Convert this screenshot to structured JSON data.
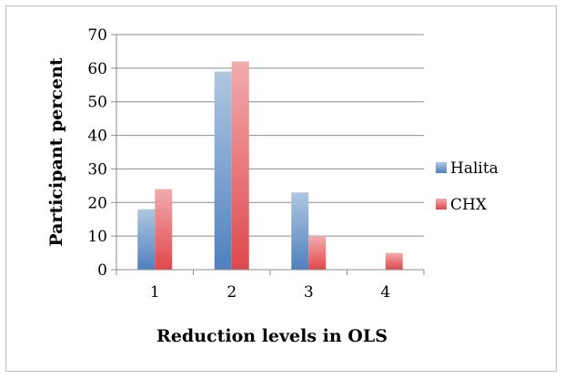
{
  "chart_data": {
    "type": "bar",
    "categories": [
      "1",
      "2",
      "3",
      "4"
    ],
    "series": [
      {
        "name": "Halita",
        "values": [
          18,
          59,
          23,
          0
        ],
        "color": "#4f81bd"
      },
      {
        "name": "CHX",
        "values": [
          24,
          62,
          10,
          5
        ],
        "color": "#e0474c"
      }
    ],
    "xlabel": "Reduction levels in OLS",
    "ylabel": "Participant percent",
    "ylim": [
      0,
      70
    ],
    "yticks": [
      0,
      10,
      20,
      30,
      40,
      50,
      60,
      70
    ],
    "grid": true,
    "legend": "right"
  }
}
